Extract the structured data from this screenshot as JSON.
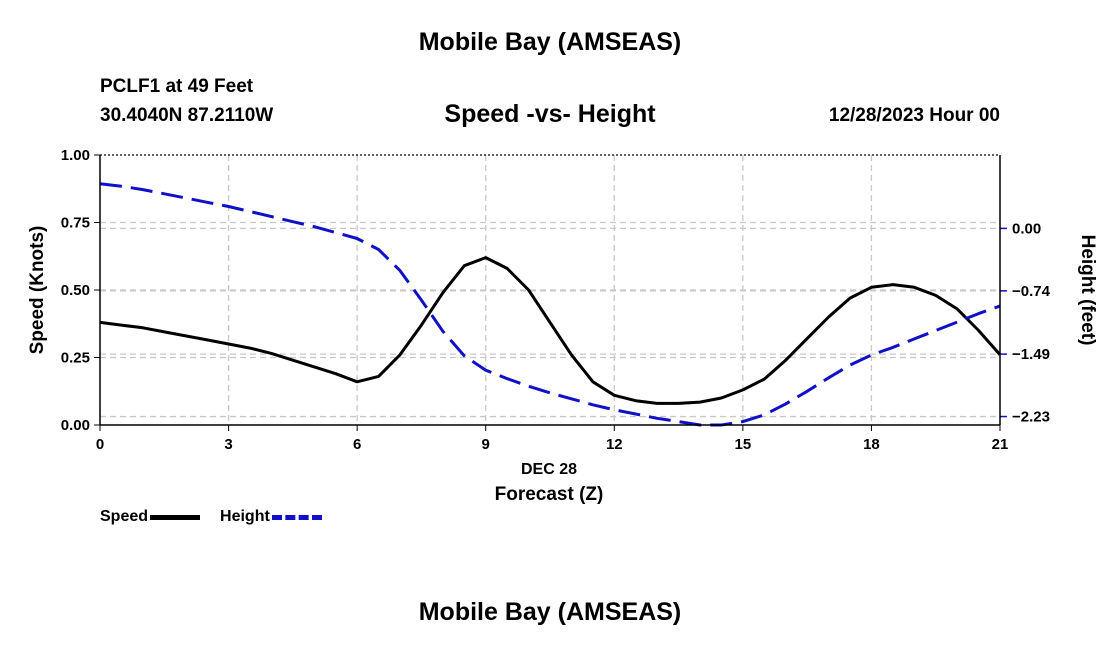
{
  "page": {
    "title_top": "Mobile Bay (AMSEAS)",
    "title_bottom": "Mobile Bay (AMSEAS)",
    "station": "PCLF1 at 49 Feet",
    "coordinates": "30.4040N  87.2110W",
    "subtitle": "Speed -vs- Height",
    "datetime": "12/28/2023 Hour 00",
    "legend": {
      "speed_label": "Speed",
      "height_label": "Height"
    }
  },
  "chart_data": {
    "type": "line",
    "title": "Speed -vs- Height",
    "x": [
      0,
      0.5,
      1,
      1.5,
      2,
      2.5,
      3,
      3.5,
      4,
      4.5,
      5,
      5.5,
      6,
      6.5,
      7,
      7.5,
      8,
      8.5,
      9,
      9.5,
      10,
      10.5,
      11,
      11.5,
      12,
      12.5,
      13,
      13.5,
      14,
      14.5,
      15,
      15.5,
      16,
      16.5,
      17,
      17.5,
      18,
      18.5,
      19,
      19.5,
      20,
      20.5,
      21
    ],
    "xticks": [
      0,
      3,
      6,
      9,
      12,
      15,
      18,
      21
    ],
    "xtick_labels": [
      "0",
      "3",
      "6",
      "9",
      "12",
      "15",
      "18",
      "21"
    ],
    "xlim": [
      0,
      21
    ],
    "date_label": "DEC 28",
    "xlabel": "Forecast (Z)",
    "series": [
      {
        "name": "Speed",
        "axis": "left",
        "color": "#000000",
        "style": "solid",
        "values": [
          0.38,
          0.37,
          0.36,
          0.345,
          0.33,
          0.315,
          0.3,
          0.285,
          0.265,
          0.24,
          0.215,
          0.19,
          0.16,
          0.18,
          0.26,
          0.37,
          0.49,
          0.59,
          0.62,
          0.58,
          0.5,
          0.38,
          0.26,
          0.16,
          0.11,
          0.09,
          0.08,
          0.08,
          0.085,
          0.1,
          0.13,
          0.17,
          0.24,
          0.32,
          0.4,
          0.47,
          0.51,
          0.52,
          0.51,
          0.48,
          0.43,
          0.35,
          0.26
        ]
      },
      {
        "name": "Height",
        "axis": "right",
        "color": "#1010c8",
        "style": "dashed",
        "values": [
          0.53,
          0.5,
          0.46,
          0.41,
          0.36,
          0.31,
          0.26,
          0.2,
          0.14,
          0.08,
          0.02,
          -0.05,
          -0.12,
          -0.25,
          -0.5,
          -0.85,
          -1.22,
          -1.51,
          -1.68,
          -1.78,
          -1.87,
          -1.95,
          -2.02,
          -2.09,
          -2.15,
          -2.2,
          -2.25,
          -2.29,
          -2.33,
          -2.33,
          -2.29,
          -2.21,
          -2.08,
          -1.93,
          -1.77,
          -1.62,
          -1.5,
          -1.41,
          -1.31,
          -1.21,
          -1.11,
          -1.01,
          -0.92
        ]
      }
    ],
    "y_left": {
      "label": "Speed (Knots)",
      "lim": [
        0,
        1
      ],
      "ticks": [
        0,
        0.25,
        0.5,
        0.75,
        1.0
      ],
      "tick_labels": [
        "0.00",
        "0.25",
        "0.50",
        "0.75",
        "1.00"
      ]
    },
    "y_right": {
      "label": "Height (feet)",
      "lim": [
        -2.33,
        0.87
      ],
      "ticks": [
        0.0,
        -0.74,
        -1.49,
        -2.23
      ],
      "tick_labels": [
        "0.00",
        "−0.74",
        "−1.49",
        "−2.23"
      ]
    },
    "grid": true
  }
}
